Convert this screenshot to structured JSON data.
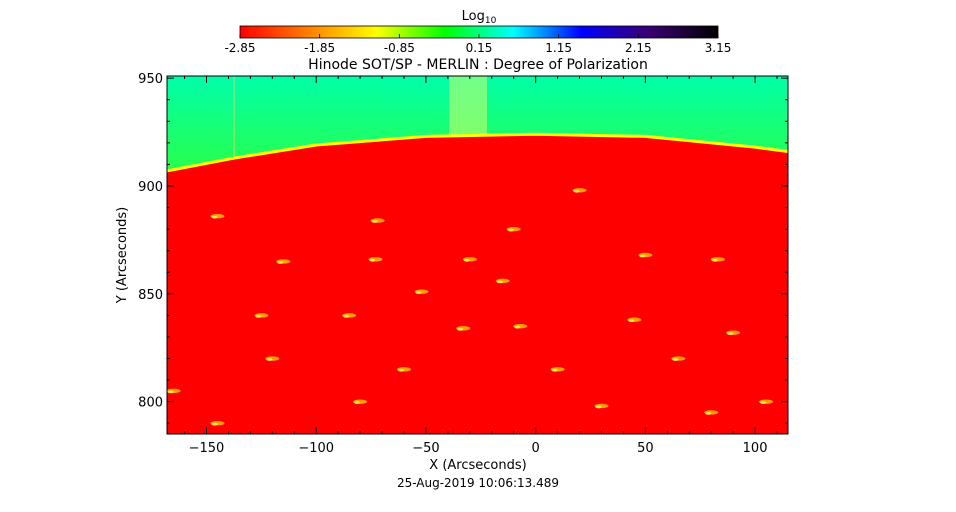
{
  "colorbar": {
    "label": "Log",
    "label_subscript": "10",
    "ticks": [
      "-2.85",
      "-1.85",
      "-0.85",
      "0.15",
      "1.15",
      "2.15",
      "3.15"
    ],
    "range": [
      -2.85,
      3.15
    ],
    "colormap": [
      "#ff0000",
      "#ff7f00",
      "#ffff00",
      "#00ff00",
      "#00ffff",
      "#0000ff",
      "#3a0070",
      "#000000"
    ]
  },
  "chart_data": {
    "type": "heatmap",
    "title": "Hinode SOT/SP - MERLIN : Degree of Polarization",
    "xlabel": "X (Arcseconds)",
    "ylabel": "Y (Arcseconds)",
    "xlim": [
      -168,
      115
    ],
    "ylim": [
      785,
      951
    ],
    "xticks": [
      -150,
      -100,
      -50,
      0,
      50,
      100
    ],
    "yticks": [
      800,
      850,
      900,
      950
    ],
    "timestamp": "25-Aug-2019 10:06:13.489",
    "limb_edge": {
      "x": [
        -168,
        -137,
        -100,
        -50,
        0,
        50,
        100,
        115
      ],
      "y": [
        907,
        913,
        919,
        923,
        924,
        923,
        918,
        916
      ]
    },
    "disk_color": "#ff0000",
    "off_limb_colors": [
      "#ffff00",
      "#aaff00",
      "#33ff33",
      "#00ffaa"
    ],
    "bright_features": [
      {
        "x": 20,
        "y": 898
      },
      {
        "x": -145,
        "y": 886
      },
      {
        "x": -72,
        "y": 884
      },
      {
        "x": -10,
        "y": 880
      },
      {
        "x": -115,
        "y": 865
      },
      {
        "x": -73,
        "y": 866
      },
      {
        "x": -30,
        "y": 866
      },
      {
        "x": 50,
        "y": 868
      },
      {
        "x": 83,
        "y": 866
      },
      {
        "x": -52,
        "y": 851
      },
      {
        "x": -15,
        "y": 856
      },
      {
        "x": -125,
        "y": 840
      },
      {
        "x": -85,
        "y": 840
      },
      {
        "x": -33,
        "y": 834
      },
      {
        "x": -7,
        "y": 835
      },
      {
        "x": 45,
        "y": 838
      },
      {
        "x": 90,
        "y": 832
      },
      {
        "x": -120,
        "y": 820
      },
      {
        "x": -60,
        "y": 815
      },
      {
        "x": 10,
        "y": 815
      },
      {
        "x": 65,
        "y": 820
      },
      {
        "x": -165,
        "y": 805
      },
      {
        "x": -145,
        "y": 790
      },
      {
        "x": -80,
        "y": 800
      },
      {
        "x": 30,
        "y": 798
      },
      {
        "x": 80,
        "y": 795
      },
      {
        "x": 105,
        "y": 800
      }
    ]
  }
}
